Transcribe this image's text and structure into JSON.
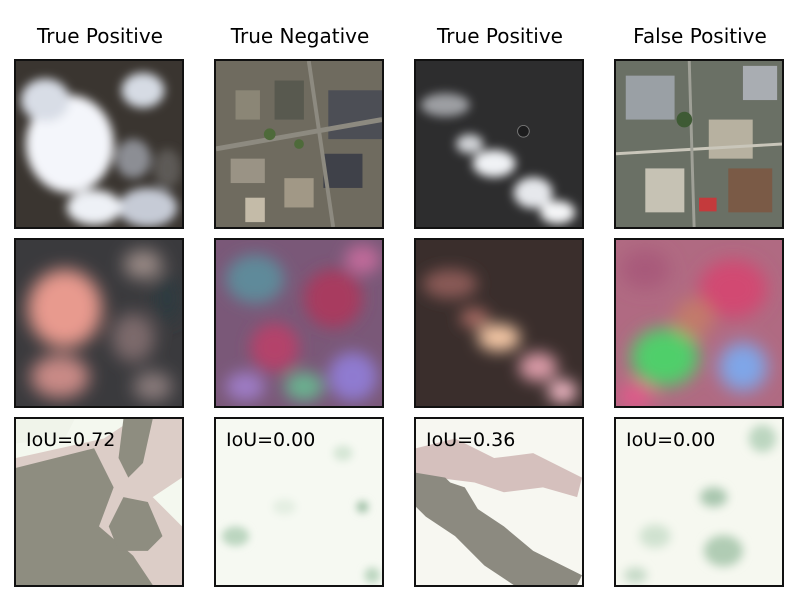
{
  "columns": [
    {
      "title": "True Positive",
      "iou": "IoU=0.72"
    },
    {
      "title": "True Negative",
      "iou": "IoU=0.00"
    },
    {
      "title": "True Positive",
      "iou": "IoU=0.36"
    },
    {
      "title": "False Positive",
      "iou": "IoU=0.00"
    }
  ]
}
